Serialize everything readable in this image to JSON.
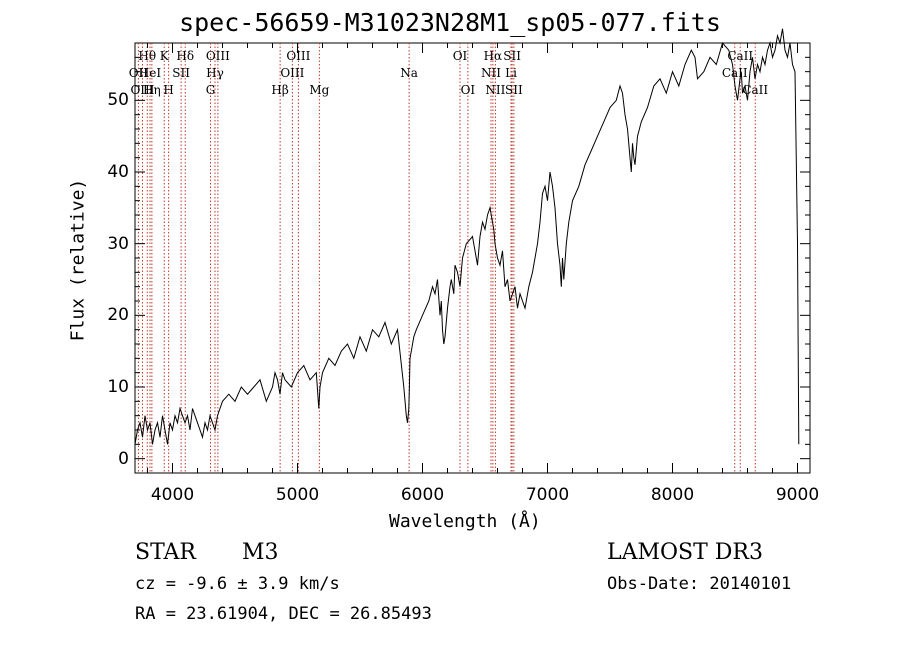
{
  "chart_data": {
    "type": "line",
    "title": "spec-56659-M31023N28M1_sp05-077.fits",
    "xlabel": "Wavelength (Å)",
    "ylabel": "Flux (relative)",
    "xlim": [
      3700,
      9100
    ],
    "ylim": [
      -2,
      58
    ],
    "x_ticks": [
      4000,
      5000,
      6000,
      7000,
      8000,
      9000
    ],
    "y_ticks": [
      0,
      10,
      20,
      30,
      40,
      50
    ],
    "series": [
      {
        "name": "spectrum",
        "x": [
          3700,
          3720,
          3740,
          3760,
          3780,
          3800,
          3820,
          3840,
          3860,
          3880,
          3900,
          3920,
          3940,
          3960,
          3980,
          4000,
          4020,
          4040,
          4060,
          4080,
          4100,
          4120,
          4140,
          4160,
          4180,
          4200,
          4220,
          4240,
          4260,
          4280,
          4300,
          4320,
          4340,
          4360,
          4380,
          4400,
          4450,
          4500,
          4550,
          4600,
          4650,
          4700,
          4750,
          4800,
          4820,
          4840,
          4860,
          4880,
          4900,
          4950,
          5000,
          5050,
          5100,
          5150,
          5170,
          5180,
          5200,
          5250,
          5300,
          5350,
          5400,
          5450,
          5500,
          5550,
          5600,
          5650,
          5700,
          5750,
          5800,
          5850,
          5870,
          5880,
          5890,
          5895,
          5900,
          5910,
          5930,
          5950,
          6000,
          6050,
          6080,
          6100,
          6120,
          6140,
          6150,
          6160,
          6170,
          6180,
          6200,
          6220,
          6230,
          6250,
          6260,
          6280,
          6300,
          6320,
          6350,
          6400,
          6420,
          6440,
          6460,
          6480,
          6500,
          6520,
          6540,
          6560,
          6570,
          6580,
          6600,
          6620,
          6640,
          6660,
          6680,
          6700,
          6720,
          6740,
          6760,
          6780,
          6800,
          6820,
          6850,
          6880,
          6900,
          6920,
          6940,
          6960,
          6980,
          7000,
          7020,
          7040,
          7060,
          7080,
          7100,
          7110,
          7120,
          7130,
          7150,
          7170,
          7200,
          7250,
          7300,
          7350,
          7400,
          7450,
          7500,
          7550,
          7580,
          7600,
          7620,
          7640,
          7660,
          7670,
          7680,
          7690,
          7700,
          7720,
          7750,
          7800,
          7850,
          7900,
          7950,
          8000,
          8050,
          8100,
          8150,
          8180,
          8200,
          8250,
          8300,
          8350,
          8400,
          8450,
          8480,
          8500,
          8520,
          8540,
          8550,
          8560,
          8580,
          8600,
          8620,
          8640,
          8660,
          8680,
          8700,
          8720,
          8740,
          8760,
          8780,
          8800,
          8820,
          8840,
          8860,
          8880,
          8900,
          8920,
          8940,
          8960,
          8980,
          9000,
          9010
        ],
        "y": [
          2,
          4,
          5,
          3,
          6,
          4,
          5,
          2,
          4,
          5,
          3,
          6,
          4,
          2,
          5,
          4,
          6,
          5,
          7,
          6,
          5,
          6,
          4,
          7,
          6,
          5,
          4,
          3,
          5,
          4,
          6,
          5,
          4,
          6,
          7,
          8,
          9,
          8,
          10,
          9,
          10,
          11,
          8,
          10,
          12,
          11,
          9,
          12,
          11,
          10,
          12,
          13,
          11,
          12,
          7,
          10,
          12,
          14,
          13,
          15,
          16,
          14,
          17,
          15,
          18,
          17,
          19,
          16,
          18,
          10,
          6,
          5,
          7,
          10,
          14,
          15,
          17,
          18,
          20,
          22,
          24,
          23,
          25,
          20,
          22,
          18,
          16,
          17,
          21,
          24,
          25,
          23,
          27,
          26,
          24,
          28,
          30,
          31,
          29,
          27,
          31,
          33,
          32,
          34,
          35,
          33,
          32,
          30,
          28,
          27,
          29,
          24,
          25,
          22,
          23,
          24,
          21,
          23,
          22,
          21,
          24,
          26,
          28,
          30,
          33,
          37,
          38,
          36,
          40,
          38,
          35,
          30,
          27,
          24,
          28,
          25,
          30,
          33,
          36,
          38,
          41,
          43,
          45,
          47,
          49,
          50,
          52,
          51,
          48,
          46,
          42,
          40,
          44,
          42,
          41,
          45,
          47,
          49,
          52,
          53,
          51,
          54,
          52,
          55,
          57,
          56,
          53,
          54,
          56,
          55,
          58,
          57,
          55,
          52,
          50,
          53,
          54,
          51,
          52,
          50,
          54,
          56,
          53,
          55,
          54,
          56,
          55,
          57,
          58,
          56,
          57,
          59,
          58,
          60,
          57,
          56,
          58,
          55,
          54,
          30,
          2
        ]
      }
    ],
    "lines": [
      {
        "label": "Hθ",
        "x": 3798,
        "row": 1
      },
      {
        "label": "OII",
        "x": 3727,
        "row": 2
      },
      {
        "label": "OIII",
        "x": 3760,
        "row": 3
      },
      {
        "label": "HeI",
        "x": 3820,
        "row": 2
      },
      {
        "label": "Hη",
        "x": 3835,
        "row": 3
      },
      {
        "label": "K",
        "x": 3934,
        "row": 1
      },
      {
        "label": "SII",
        "x": 4069,
        "row": 2
      },
      {
        "label": "H",
        "x": 3969,
        "row": 3
      },
      {
        "label": "Hδ",
        "x": 4102,
        "row": 1
      },
      {
        "label": "OIII",
        "x": 4363,
        "row": 1
      },
      {
        "label": "Hγ",
        "x": 4340,
        "row": 2
      },
      {
        "label": "G",
        "x": 4304,
        "row": 3
      },
      {
        "label": "OIII",
        "x": 5007,
        "row": 1
      },
      {
        "label": "OIII",
        "x": 4959,
        "row": 2
      },
      {
        "label": "Hβ",
        "x": 4861,
        "row": 3
      },
      {
        "label": "Mg",
        "x": 5175,
        "row": 3
      },
      {
        "label": "Na",
        "x": 5893,
        "row": 2
      },
      {
        "label": "OI",
        "x": 6300,
        "row": 1
      },
      {
        "label": "OI",
        "x": 6363,
        "row": 3
      },
      {
        "label": "Hα",
        "x": 6563,
        "row": 1
      },
      {
        "label": "SII",
        "x": 6717,
        "row": 1
      },
      {
        "label": "NII",
        "x": 6548,
        "row": 2
      },
      {
        "label": "Li",
        "x": 6708,
        "row": 2
      },
      {
        "label": "NII",
        "x": 6583,
        "row": 3
      },
      {
        "label": "SII",
        "x": 6731,
        "row": 3
      },
      {
        "label": "CaII",
        "x": 8542,
        "row": 1
      },
      {
        "label": "CaII",
        "x": 8498,
        "row": 2
      },
      {
        "label": "CaII",
        "x": 8662,
        "row": 3
      }
    ]
  },
  "info": {
    "object_class": "STAR",
    "subclass": "M3",
    "survey": "LAMOST DR3",
    "cz": "cz = -9.6 ± 3.9 km/s",
    "obs_date": "Obs-Date: 20140101",
    "coords": "RA =  23.61904, DEC =  26.85493"
  }
}
